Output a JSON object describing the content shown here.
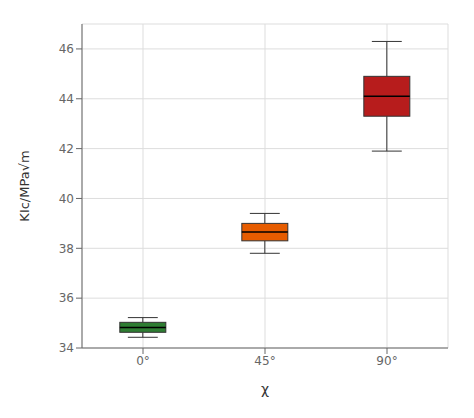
{
  "chart_data": {
    "type": "box",
    "categories": [
      "0°",
      "45°",
      "90°"
    ],
    "whislo": [
      34.43,
      37.8,
      41.9
    ],
    "q1": [
      34.63,
      38.3,
      43.3
    ],
    "med": [
      34.82,
      38.65,
      44.1
    ],
    "q3": [
      35.03,
      39.0,
      44.9
    ],
    "whishi": [
      35.22,
      39.4,
      46.3
    ],
    "colors": [
      "#2e7d32",
      "#e65c00",
      "#b71c1c"
    ],
    "xlabel": "χ",
    "ylabel": "KIc/MPa√m",
    "ylim": [
      34,
      47
    ],
    "yticks": [
      34,
      36,
      38,
      40,
      42,
      44,
      46
    ],
    "grid": true
  }
}
